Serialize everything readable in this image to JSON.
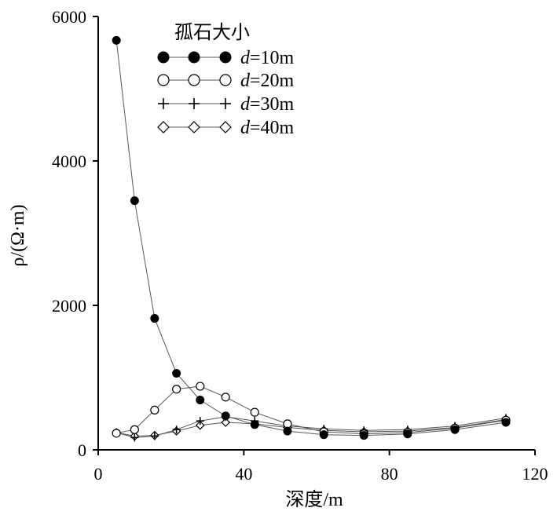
{
  "chart_data": {
    "type": "line",
    "xlabel": "深度/m",
    "ylabel": "ρ/(Ω·m)",
    "xlim": [
      0,
      120
    ],
    "ylim": [
      0,
      6000
    ],
    "xticks": [
      0,
      40,
      80,
      120
    ],
    "yticks": [
      0,
      2000,
      4000,
      6000
    ],
    "grid": false,
    "legend": {
      "title": "孤石大小",
      "placement": "top-center"
    },
    "series": [
      {
        "name": "d=10m",
        "name_italic": "d",
        "name_rest": "=10m",
        "marker": "filled-circle",
        "x": [
          5,
          10,
          15.5,
          21.5,
          28,
          35,
          43,
          52,
          62,
          73,
          85,
          98,
          112
        ],
        "y": [
          5670,
          3450,
          1820,
          1060,
          690,
          470,
          350,
          260,
          210,
          200,
          220,
          280,
          380
        ]
      },
      {
        "name": "d=20m",
        "name_italic": "d",
        "name_rest": "=20m",
        "marker": "open-circle",
        "x": [
          5,
          10,
          15.5,
          21.5,
          28,
          35,
          43,
          52,
          62,
          73,
          85,
          98,
          112
        ],
        "y": [
          230,
          280,
          550,
          840,
          880,
          730,
          520,
          360,
          250,
          220,
          240,
          300,
          410
        ]
      },
      {
        "name": "d=30m",
        "name_italic": "d",
        "name_rest": "=30m",
        "marker": "plus",
        "x": [
          5,
          10,
          15.5,
          21.5,
          28,
          35,
          43,
          52,
          62,
          73,
          85,
          98,
          112
        ],
        "y": [
          240,
          170,
          190,
          280,
          400,
          460,
          400,
          330,
          290,
          270,
          280,
          330,
          440
        ]
      },
      {
        "name": "d=40m",
        "name_italic": "d",
        "name_rest": "=40m",
        "marker": "open-diamond",
        "x": [
          5,
          10,
          15.5,
          21.5,
          28,
          35,
          43,
          52,
          62,
          73,
          85,
          98,
          112
        ],
        "y": [
          240,
          190,
          200,
          260,
          340,
          380,
          360,
          310,
          270,
          250,
          260,
          310,
          420
        ]
      }
    ]
  }
}
